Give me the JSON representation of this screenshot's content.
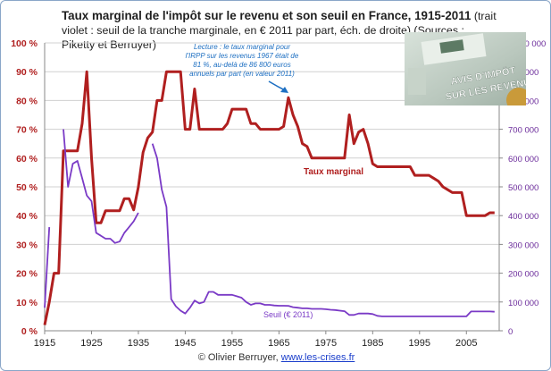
{
  "title": {
    "bold": "Taux marginal de l'impôt sur le revenu et son seuil en France, 1915-2011",
    "rest": " (trait violet : seuil de la tranche marginale, en € 2011 par part, éch. de droite) (Sources : Piketty et Berruyer)"
  },
  "annotation": {
    "lines": [
      "Lecture : le taux marginal pour",
      "l'IRPP sur les revenus 1967 était de",
      "81 %, au-delà de 86 800 euros",
      "annuels par part (en valeur 2011)"
    ]
  },
  "credit": {
    "author": "© Olivier Berruyer,",
    "link": "www.les-crises.fr"
  },
  "photo": {
    "line1": "AVIS D'IMPÔT",
    "line2": "SUR LES REVENUS"
  },
  "colors": {
    "rate": "#b01f1f",
    "threshold": "#7a3ac6",
    "left_axis": "#b01f1f",
    "right_axis": "#6a2a9a",
    "grid": "#d0d0d0"
  },
  "chart_data": {
    "type": "line",
    "xlim": [
      1915,
      2012
    ],
    "x_ticks": [
      1915,
      1925,
      1935,
      1945,
      1955,
      1965,
      1975,
      1985,
      1995,
      2005
    ],
    "y_left": {
      "lim": [
        0,
        100
      ],
      "ticks": [
        "0 %",
        "10 %",
        "20 %",
        "30 %",
        "40 %",
        "50 %",
        "60 %",
        "70 %",
        "80 %",
        "90 %",
        "100 %"
      ]
    },
    "y_right": {
      "lim": [
        0,
        1000000
      ],
      "ticks": [
        "0",
        "100 000",
        "200 000",
        "300 000",
        "400 000",
        "500 000",
        "600 000",
        "700 000",
        "800 000",
        "900 000",
        "1 000 000"
      ]
    },
    "grid": true,
    "series": [
      {
        "name": "Taux marginal",
        "axis": "left",
        "points": [
          [
            1915,
            2
          ],
          [
            1916,
            10
          ],
          [
            1917,
            20
          ],
          [
            1918,
            20
          ],
          [
            1919,
            62.5
          ],
          [
            1920,
            62.5
          ],
          [
            1921,
            62.5
          ],
          [
            1922,
            62.5
          ],
          [
            1923,
            72
          ],
          [
            1924,
            90
          ],
          [
            1925,
            60
          ],
          [
            1926,
            37.5
          ],
          [
            1927,
            37.5
          ],
          [
            1928,
            41.7
          ],
          [
            1929,
            41.7
          ],
          [
            1930,
            41.7
          ],
          [
            1931,
            41.7
          ],
          [
            1932,
            45.9
          ],
          [
            1933,
            45.9
          ],
          [
            1934,
            42
          ],
          [
            1935,
            49.9
          ],
          [
            1936,
            62
          ],
          [
            1937,
            67
          ],
          [
            1938,
            69
          ],
          [
            1939,
            80
          ],
          [
            1940,
            80
          ],
          [
            1941,
            90
          ],
          [
            1942,
            90
          ],
          [
            1943,
            90
          ],
          [
            1944,
            90
          ],
          [
            1945,
            70
          ],
          [
            1946,
            70
          ],
          [
            1947,
            84
          ],
          [
            1948,
            70
          ],
          [
            1949,
            70
          ],
          [
            1950,
            70
          ],
          [
            1951,
            70
          ],
          [
            1952,
            70
          ],
          [
            1953,
            70
          ],
          [
            1954,
            72
          ],
          [
            1955,
            77
          ],
          [
            1956,
            77
          ],
          [
            1957,
            77
          ],
          [
            1958,
            77
          ],
          [
            1959,
            72
          ],
          [
            1960,
            72
          ],
          [
            1961,
            70
          ],
          [
            1962,
            70
          ],
          [
            1963,
            70
          ],
          [
            1964,
            70
          ],
          [
            1965,
            70
          ],
          [
            1966,
            71
          ],
          [
            1967,
            81
          ],
          [
            1968,
            75
          ],
          [
            1969,
            71
          ],
          [
            1970,
            65
          ],
          [
            1971,
            64
          ],
          [
            1972,
            60
          ],
          [
            1973,
            60
          ],
          [
            1974,
            60
          ],
          [
            1975,
            60
          ],
          [
            1976,
            60
          ],
          [
            1977,
            60
          ],
          [
            1978,
            60
          ],
          [
            1979,
            60
          ],
          [
            1980,
            75
          ],
          [
            1981,
            65
          ],
          [
            1982,
            69
          ],
          [
            1983,
            70
          ],
          [
            1984,
            65
          ],
          [
            1985,
            58
          ],
          [
            1986,
            57
          ],
          [
            1987,
            57
          ],
          [
            1988,
            57
          ],
          [
            1989,
            57
          ],
          [
            1990,
            57
          ],
          [
            1991,
            57
          ],
          [
            1992,
            57
          ],
          [
            1993,
            57
          ],
          [
            1994,
            54
          ],
          [
            1995,
            54
          ],
          [
            1996,
            54
          ],
          [
            1997,
            54
          ],
          [
            1998,
            53
          ],
          [
            1999,
            52
          ],
          [
            2000,
            50
          ],
          [
            2001,
            49
          ],
          [
            2002,
            48
          ],
          [
            2003,
            48
          ],
          [
            2004,
            48
          ],
          [
            2005,
            40
          ],
          [
            2006,
            40
          ],
          [
            2007,
            40
          ],
          [
            2008,
            40
          ],
          [
            2009,
            40
          ],
          [
            2010,
            41
          ],
          [
            2011,
            41
          ]
        ]
      },
      {
        "name": "Seuil (€ 2011)",
        "axis": "right",
        "segments": [
          [
            [
              1915,
              80000
            ],
            [
              1916,
              360000
            ]
          ],
          [
            [
              1919,
              700000
            ],
            [
              1920,
              500000
            ],
            [
              1921,
              580000
            ],
            [
              1922,
              590000
            ],
            [
              1923,
              530000
            ],
            [
              1924,
              470000
            ],
            [
              1925,
              450000
            ],
            [
              1926,
              340000
            ],
            [
              1927,
              330000
            ],
            [
              1928,
              320000
            ],
            [
              1929,
              320000
            ],
            [
              1930,
              305000
            ],
            [
              1931,
              310000
            ],
            [
              1932,
              340000
            ],
            [
              1933,
              360000
            ],
            [
              1934,
              380000
            ],
            [
              1935,
              410000
            ]
          ],
          [
            [
              1938,
              650000
            ],
            [
              1939,
              600000
            ],
            [
              1940,
              490000
            ],
            [
              1941,
              430000
            ],
            [
              1942,
              110000
            ],
            [
              1943,
              85000
            ],
            [
              1944,
              70000
            ],
            [
              1945,
              60000
            ],
            [
              1946,
              80000
            ],
            [
              1947,
              105000
            ],
            [
              1948,
              95000
            ],
            [
              1949,
              100000
            ],
            [
              1950,
              135000
            ],
            [
              1951,
              135000
            ],
            [
              1952,
              125000
            ],
            [
              1953,
              125000
            ],
            [
              1954,
              125000
            ],
            [
              1955,
              125000
            ],
            [
              1956,
              120000
            ],
            [
              1957,
              115000
            ],
            [
              1958,
              100000
            ],
            [
              1959,
              90000
            ],
            [
              1960,
              95000
            ],
            [
              1961,
              95000
            ],
            [
              1962,
              90000
            ],
            [
              1963,
              90000
            ],
            [
              1964,
              88000
            ],
            [
              1965,
              87000
            ],
            [
              1966,
              87000
            ],
            [
              1967,
              86800
            ],
            [
              1968,
              82000
            ],
            [
              1969,
              80000
            ],
            [
              1970,
              78000
            ],
            [
              1971,
              78000
            ],
            [
              1972,
              76000
            ],
            [
              1973,
              76000
            ],
            [
              1974,
              76000
            ],
            [
              1975,
              75000
            ],
            [
              1976,
              73000
            ],
            [
              1977,
              72000
            ],
            [
              1978,
              70000
            ],
            [
              1979,
              68000
            ],
            [
              1980,
              55000
            ],
            [
              1981,
              55000
            ],
            [
              1982,
              60000
            ],
            [
              1983,
              60000
            ],
            [
              1984,
              60000
            ],
            [
              1985,
              58000
            ],
            [
              1986,
              52000
            ],
            [
              1987,
              50000
            ],
            [
              1988,
              50000
            ],
            [
              1989,
              50000
            ],
            [
              1990,
              50000
            ],
            [
              1995,
              50000
            ],
            [
              2000,
              50000
            ],
            [
              2005,
              50000
            ],
            [
              2006,
              67000
            ],
            [
              2007,
              67000
            ],
            [
              2008,
              67000
            ],
            [
              2009,
              67000
            ],
            [
              2010,
              67000
            ],
            [
              2011,
              66000
            ]
          ]
        ]
      }
    ],
    "labels": {
      "rate": "Taux marginal",
      "threshold": "Seuil (€ 2011)"
    }
  }
}
